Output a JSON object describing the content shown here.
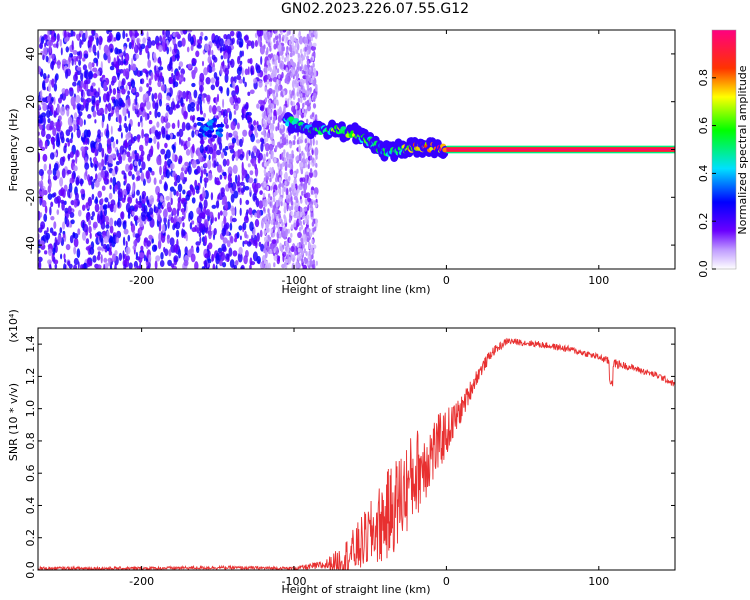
{
  "title": "GN02.2023.226.07.55.G12",
  "chart_data": [
    {
      "type": "heatmap",
      "xlabel": "Height of straight line (km)",
      "ylabel": "Frequency (Hz)",
      "xlim": [
        -268,
        150
      ],
      "ylim": [
        -50,
        50
      ],
      "x_ticks": [
        -200,
        -100,
        0,
        100
      ],
      "y_ticks": [
        -40,
        -20,
        0,
        20,
        40
      ],
      "colorbar": {
        "label": "Normalized spectral amplitude",
        "range": [
          0,
          1
        ],
        "ticks": [
          0.0,
          0.2,
          0.4,
          0.6,
          0.8
        ],
        "colormap": [
          "#ffffff",
          "#7a00ff",
          "#0000ff",
          "#00d0ff",
          "#00ff00",
          "#ffff00",
          "#ff0000",
          "#ff0080"
        ]
      },
      "features": {
        "noise_region_x": [
          -268,
          -95
        ],
        "faint_noise_x": [
          -120,
          -85
        ],
        "blob": {
          "x": -155,
          "y": 9,
          "amplitude": 0.35
        },
        "ridge": [
          {
            "x": -105,
            "y": 12,
            "amplitude": 0.45
          },
          {
            "x": -90,
            "y": 9,
            "amplitude": 0.5
          },
          {
            "x": -75,
            "y": 8,
            "amplitude": 0.55
          },
          {
            "x": -60,
            "y": 7,
            "amplitude": 0.6
          },
          {
            "x": -50,
            "y": 3,
            "amplitude": 0.5
          },
          {
            "x": -40,
            "y": -1,
            "amplitude": 0.45
          },
          {
            "x": -30,
            "y": 0,
            "amplitude": 0.55
          },
          {
            "x": -20,
            "y": 1,
            "amplitude": 0.7
          },
          {
            "x": -10,
            "y": 1,
            "amplitude": 0.8
          },
          {
            "x": 0,
            "y": 0,
            "amplitude": 0.9
          }
        ],
        "steady_line": {
          "x_start": 0,
          "x_end": 150,
          "y": 0,
          "amplitude": 1.0
        }
      }
    },
    {
      "type": "line",
      "xlabel": "Height of straight line (km)",
      "ylabel": "SNR (10 * v/v)",
      "y_scale_label": "(x10⁴)",
      "xlim": [
        -268,
        150
      ],
      "ylim": [
        0,
        1.5
      ],
      "x_ticks": [
        -200,
        -100,
        0,
        100
      ],
      "y_ticks": [
        0.0,
        0.2,
        0.4,
        0.6,
        0.8,
        1.0,
        1.2,
        1.4
      ],
      "color": "#e83030",
      "series": [
        {
          "x": [
            -268,
            -200,
            -150,
            -100,
            -80,
            -70,
            -60,
            -50,
            -40,
            -30,
            -20,
            -10,
            0,
            10,
            20,
            30,
            40,
            60,
            80,
            100,
            110,
            120,
            140,
            150
          ],
          "values": [
            0.01,
            0.01,
            0.015,
            0.01,
            0.03,
            0.06,
            0.12,
            0.22,
            0.32,
            0.45,
            0.6,
            0.72,
            0.85,
            1.0,
            1.2,
            1.35,
            1.42,
            1.4,
            1.37,
            1.32,
            1.28,
            1.26,
            1.2,
            1.15
          ],
          "spread": [
            0.01,
            0.01,
            0.01,
            0.01,
            0.03,
            0.08,
            0.15,
            0.2,
            0.28,
            0.3,
            0.28,
            0.22,
            0.15,
            0.08,
            0.05,
            0.03,
            0.02,
            0.02,
            0.02,
            0.02,
            0.03,
            0.02,
            0.02,
            0.02
          ]
        }
      ]
    }
  ]
}
